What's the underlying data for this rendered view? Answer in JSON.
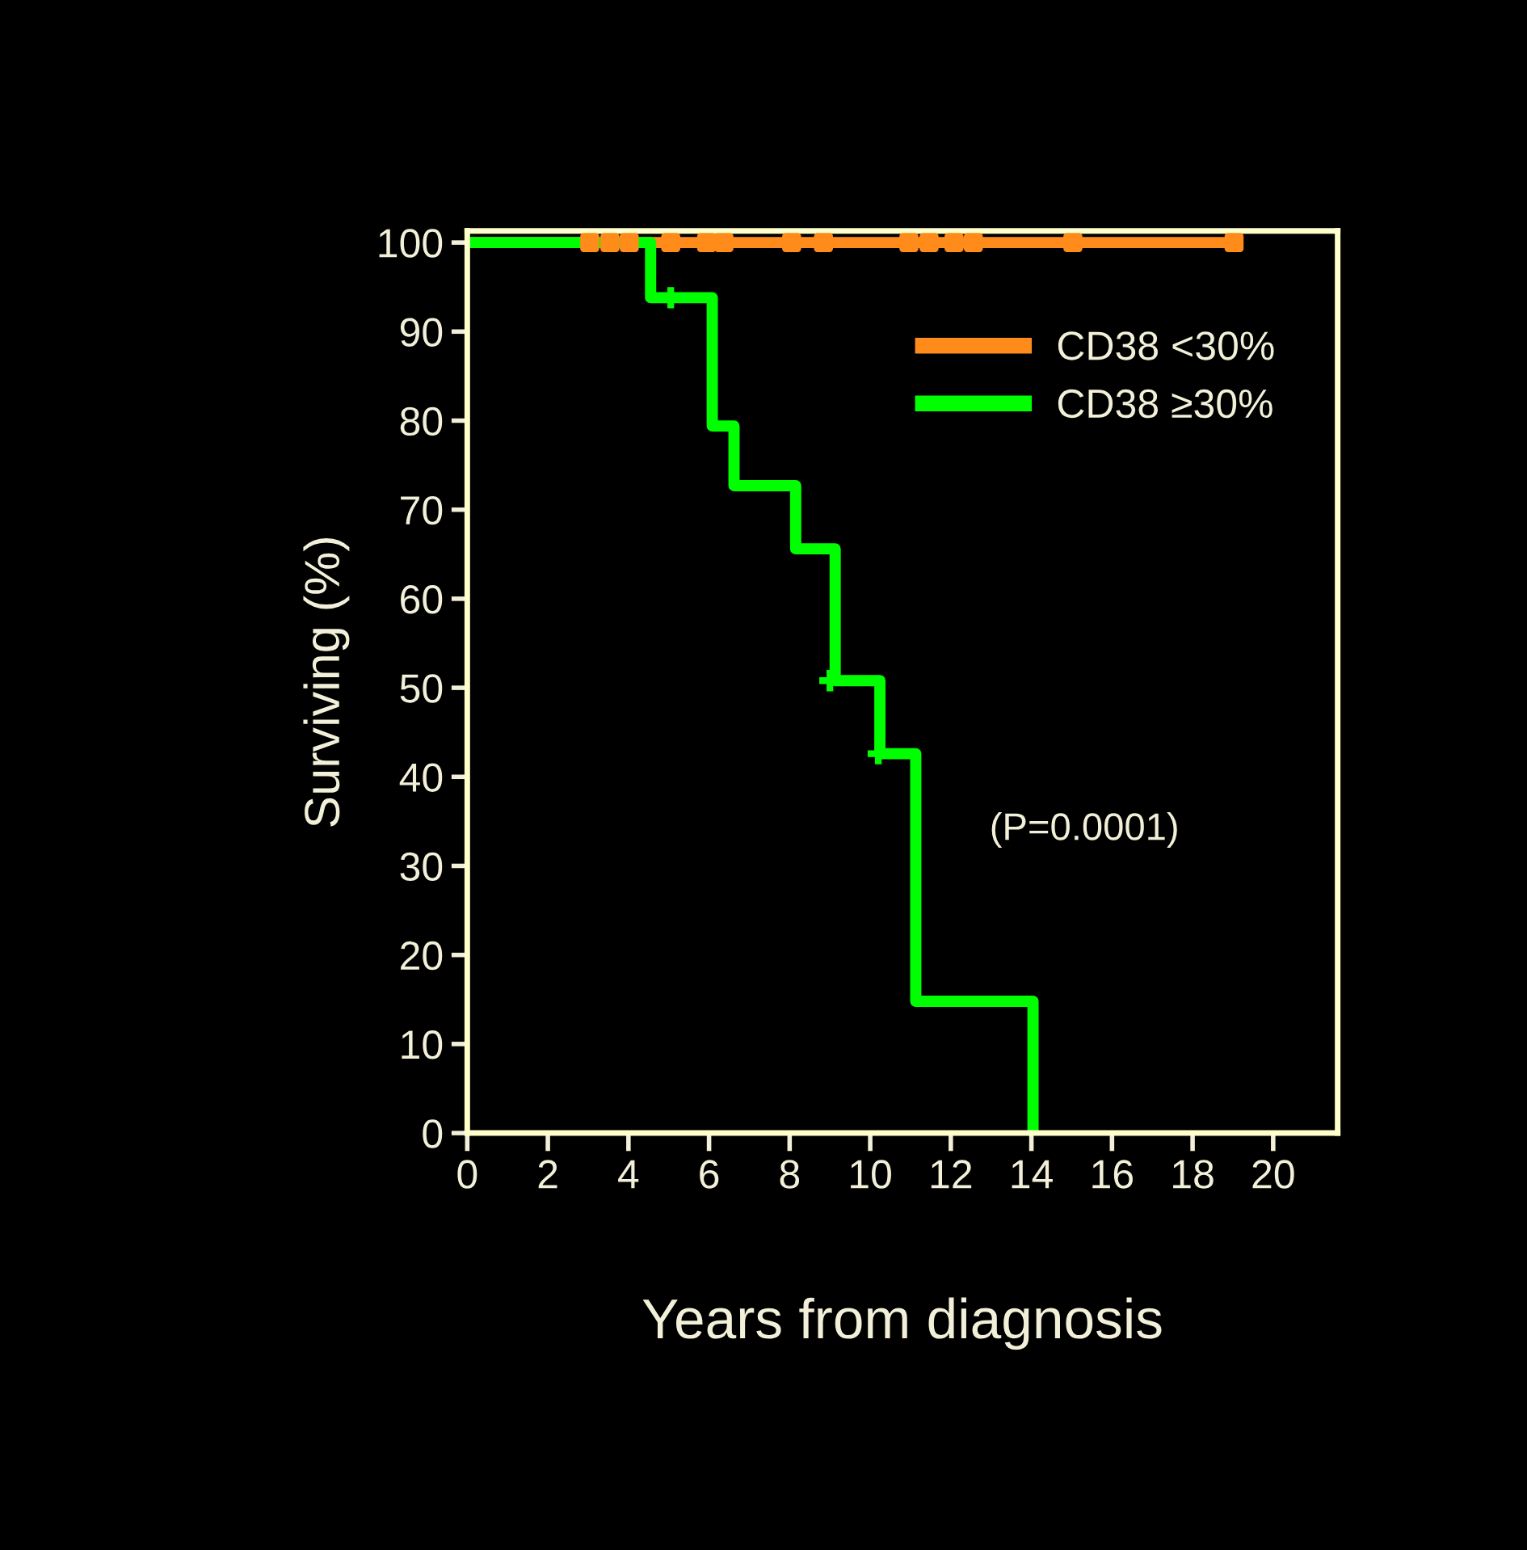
{
  "chart_data": {
    "type": "step",
    "xlabel": "Years from diagnosis",
    "ylabel": "Surviving (%)",
    "xlim": [
      0,
      21.6
    ],
    "ylim": [
      0,
      101.3
    ],
    "xticks": [
      0,
      2,
      4,
      6,
      8,
      10,
      12,
      14,
      16,
      18,
      20
    ],
    "yticks": [
      0,
      10,
      20,
      30,
      40,
      50,
      60,
      70,
      80,
      90,
      100
    ],
    "grid": false,
    "legend": "top right",
    "line_style": "solid",
    "series": [
      {
        "name": "CD38 <30%",
        "color": "#ff8c1a",
        "x": [
          0,
          19.03
        ],
        "values": [
          100,
          100
        ]
      },
      {
        "name": "CD38 ≥30%",
        "color": "#00ff00",
        "x": [
          0,
          4.55,
          6.08,
          6.62,
          8.15,
          9.13,
          10.24,
          11.13,
          14.04
        ],
        "values": [
          100,
          93.8,
          79.4,
          72.7,
          65.6,
          50.8,
          42.6,
          14.8,
          0
        ]
      },
      {
        "type": "scatter",
        "marker": "square",
        "color": "#ff8c1a",
        "x": [
          3.04,
          3.54,
          4.02,
          5.05,
          5.94,
          6.37,
          8.05,
          8.84,
          10.96,
          11.46,
          12.08,
          12.56,
          15.03,
          19.03
        ],
        "values": [
          100,
          100,
          100,
          100,
          100,
          100,
          100,
          100,
          100,
          100,
          100,
          100,
          100,
          100
        ]
      },
      {
        "type": "scatter",
        "marker": "cross",
        "color": "#00ff00",
        "x": [
          5.05,
          9.0,
          10.2
        ],
        "values": [
          93.8,
          50.8,
          42.6
        ]
      }
    ],
    "annotations": [
      "(P=0.0001)"
    ]
  }
}
